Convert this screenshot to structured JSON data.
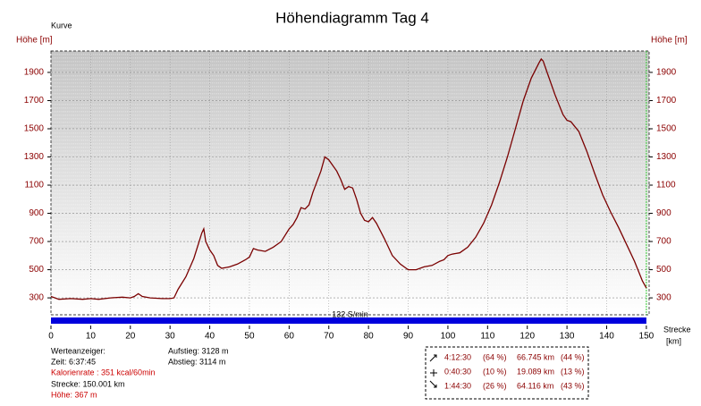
{
  "chart_data": {
    "type": "line",
    "title": "Höhendiagramm Tag 4",
    "curve_label": "Kurve",
    "y_label": "Höhe [m]",
    "y2_label": "Höhe [m]",
    "x_label": [
      "Strecke",
      "[km]"
    ],
    "x": [
      0,
      2,
      5,
      8,
      10,
      12,
      15,
      18,
      20,
      21,
      22,
      23,
      25,
      28,
      30,
      31,
      32,
      34,
      36,
      38,
      38.5,
      39,
      40,
      41,
      42,
      43,
      45,
      47,
      49,
      50,
      51,
      52,
      54,
      56,
      58,
      60,
      61,
      62,
      63,
      64,
      65,
      66,
      68,
      69,
      70,
      72,
      73,
      74,
      75,
      76,
      77,
      78,
      79,
      80,
      81,
      82,
      84,
      86,
      88,
      90,
      92,
      94,
      96,
      98,
      99,
      100,
      101,
      103,
      105,
      107,
      109,
      111,
      113,
      115,
      117,
      119,
      121,
      123,
      123.5,
      124,
      125,
      127,
      129,
      130,
      131,
      133,
      135,
      137,
      139,
      141,
      143,
      145,
      147,
      149,
      150
    ],
    "values": [
      310,
      290,
      295,
      290,
      295,
      290,
      300,
      305,
      300,
      310,
      330,
      310,
      300,
      295,
      295,
      300,
      360,
      450,
      580,
      760,
      790,
      700,
      640,
      600,
      530,
      510,
      520,
      540,
      570,
      590,
      650,
      640,
      630,
      660,
      700,
      790,
      820,
      870,
      940,
      930,
      960,
      1050,
      1200,
      1300,
      1280,
      1200,
      1140,
      1070,
      1090,
      1080,
      1000,
      900,
      850,
      840,
      870,
      830,
      720,
      600,
      540,
      500,
      500,
      520,
      530,
      560,
      570,
      600,
      610,
      620,
      660,
      730,
      830,
      960,
      1120,
      1300,
      1500,
      1700,
      1860,
      1970,
      1995,
      1980,
      1900,
      1740,
      1600,
      1560,
      1550,
      1480,
      1340,
      1180,
      1030,
      910,
      800,
      680,
      560,
      420,
      370
    ],
    "color": "#7a0000",
    "xlim": [
      0,
      150.7
    ],
    "ylim": [
      180,
      2052
    ],
    "xticks": [
      0,
      10,
      20,
      30,
      40,
      50,
      60,
      70,
      80,
      90,
      100,
      110,
      120,
      130,
      140,
      150
    ],
    "yticks": [
      300,
      500,
      700,
      900,
      1100,
      1300,
      1500,
      1700,
      1900
    ],
    "grid": true,
    "marker_x": 150,
    "marker_color": "#33cc33",
    "band_label": "132 S/min",
    "band_color": "#0000dd"
  },
  "info": {
    "title": "Werteanzeiger:",
    "time": "Zeit: 6:37:45",
    "calories": "Kalorienrate : 351 kcal/60min",
    "distance": "Strecke: 150.001 km",
    "height": "Höhe: 367 m",
    "ascent": "Aufstieg: 3128 m",
    "descent": "Abstieg: 3114 m"
  },
  "summary": {
    "rows": [
      [
        "4:12:30",
        "(64 %)",
        "66.745 km",
        "(44 %)"
      ],
      [
        "0:40:30",
        "(10 %)",
        "19.089 km",
        "(13 %)"
      ],
      [
        "1:44:30",
        "(26 %)",
        "64.116 km",
        "(43 %)"
      ]
    ]
  }
}
